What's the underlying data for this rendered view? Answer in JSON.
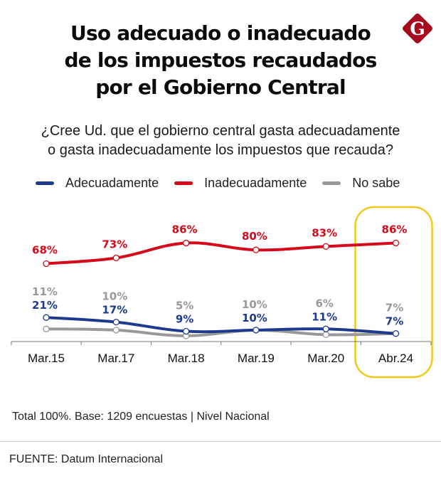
{
  "header": {
    "title_lines": [
      "Uso adecuado o inadecuado",
      "de los impuestos recaudados",
      "por el Gobierno Central"
    ],
    "subtitle_lines": [
      "¿Cree Ud. que el gobierno central gasta adecuadamente",
      "o gasta inadecuadamente los impuestos que recauda?"
    ],
    "logo": {
      "icon": "g-diamond-logo-icon",
      "letter": "G",
      "color": "#a50d1e"
    }
  },
  "chart_data": {
    "type": "line",
    "title": "Uso adecuado o inadecuado de los impuestos recaudados por el Gobierno Central",
    "xlabel": "",
    "ylabel": "",
    "ylim": [
      0,
      100
    ],
    "grid": false,
    "legend_position": "top",
    "categories": [
      "Mar.15",
      "Mar.17",
      "Mar.18",
      "Mar.19",
      "Mar.20",
      "Abr.24"
    ],
    "series": [
      {
        "name": "Adecuadamente",
        "color": "#1d3a8f",
        "values": [
          21,
          17,
          9,
          10,
          11,
          7
        ]
      },
      {
        "name": "Inadecuadamente",
        "color": "#d6091c",
        "values": [
          68,
          73,
          86,
          80,
          83,
          86
        ]
      },
      {
        "name": "No sabe",
        "color": "#999999",
        "values": [
          11,
          10,
          5,
          10,
          6,
          7
        ]
      }
    ],
    "highlight": {
      "category": "Abr.24",
      "color": "#f2c81d"
    }
  },
  "footer": {
    "note": "Total 100%. Base: 1209 encuestas | Nivel Nacional",
    "source": "FUENTE: Datum Internacional"
  }
}
